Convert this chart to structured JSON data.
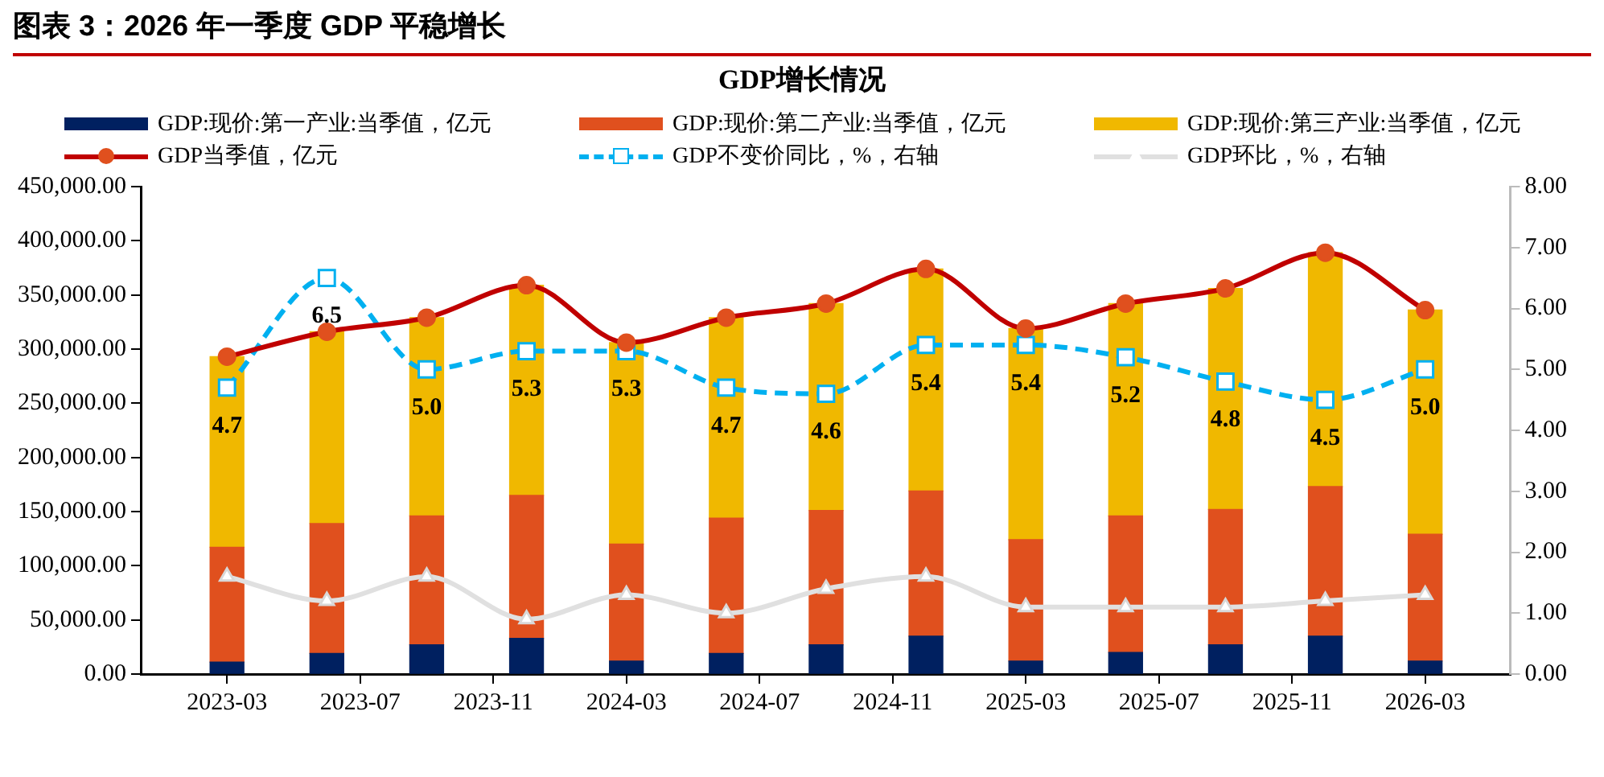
{
  "chart_data": {
    "type": "bar",
    "title": "图表 3：2026 年一季度 GDP 平稳增长",
    "subtitle": "GDP增长情况",
    "x": [
      "2023-03",
      "2023-06",
      "2023-09",
      "2023-12",
      "2024-03",
      "2024-06",
      "2024-09",
      "2024-12",
      "2025-03",
      "2025-06",
      "2025-09",
      "2025-12",
      "2026-03"
    ],
    "stacked": true,
    "legend": "top",
    "grid": false,
    "series": [
      {
        "name": "GDP:现价:第一产业:当季值，亿元",
        "color": "#002060",
        "values": [
          11000,
          19000,
          27000,
          33000,
          12000,
          19000,
          27000,
          35000,
          12000,
          20000,
          27000,
          35000,
          12000
        ]
      },
      {
        "name": "GDP:现价:第二产业:当季值，亿元",
        "color": "#e0501e",
        "values": [
          106000,
          120000,
          119000,
          132000,
          108000,
          125000,
          124000,
          134000,
          112000,
          126000,
          125000,
          138000,
          117000
        ]
      },
      {
        "name": "GDP:现价:第三产业:当季值，亿元",
        "color": "#f0b800",
        "values": [
          176000,
          177000,
          183000,
          194000,
          186000,
          185000,
          191000,
          205000,
          195000,
          196000,
          204000,
          216000,
          207000
        ]
      },
      {
        "name": "GDP当季值，亿元",
        "type": "line",
        "color": "#c00000",
        "marker": "circle",
        "line_style": "solid",
        "values": [
          293000,
          316000,
          329000,
          359000,
          306000,
          329000,
          342000,
          374000,
          319000,
          342000,
          356000,
          389000,
          336000
        ]
      },
      {
        "name": "GDP不变价同比，%，右轴",
        "type": "line",
        "axis": "y2",
        "color": "#00b0f0",
        "marker": "square",
        "line_style": "dashed",
        "values": [
          4.7,
          6.5,
          5.0,
          5.3,
          5.3,
          4.7,
          4.6,
          5.4,
          5.4,
          5.2,
          4.8,
          4.5,
          5.0
        ],
        "value_labels": [
          "4.7",
          "6.5",
          "5.0",
          "5.3",
          "5.3",
          "4.7",
          "4.6",
          "5.4",
          "5.4",
          "5.2",
          "4.8",
          "4.5",
          "5.0"
        ]
      },
      {
        "name": "GDP环比，%，右轴",
        "type": "line",
        "axis": "y2",
        "color": "#e0e0e0",
        "marker": "triangle",
        "line_style": "solid",
        "values": [
          1.6,
          1.2,
          1.6,
          0.9,
          1.3,
          1.0,
          1.4,
          1.6,
          1.1,
          1.1,
          1.1,
          1.2,
          1.3
        ]
      }
    ],
    "xlim": [
      "2023-02-15",
      "2026-03-16"
    ],
    "xticks": [
      "2023-03",
      "2023-07",
      "2023-11",
      "2024-03",
      "2024-07",
      "2024-11",
      "2025-03",
      "2025-07",
      "2025-11",
      "2026-03"
    ],
    "ylim": [
      0,
      450000
    ],
    "yticks": [
      {
        "value": 0,
        "label": "0.00"
      },
      {
        "value": 50000,
        "label": "50,000.00"
      },
      {
        "value": 100000,
        "label": "100,000.00"
      },
      {
        "value": 150000,
        "label": "150,000.00"
      },
      {
        "value": 200000,
        "label": "200,000.00"
      },
      {
        "value": 250000,
        "label": "250,000.00"
      },
      {
        "value": 300000,
        "label": "300,000.00"
      },
      {
        "value": 350000,
        "label": "350,000.00"
      },
      {
        "value": 400000,
        "label": "400,000.00"
      },
      {
        "value": 450000,
        "label": "450,000.00"
      }
    ],
    "y2lim": [
      0,
      8
    ],
    "y2ticks": [
      {
        "value": 0,
        "label": "0.00"
      },
      {
        "value": 1,
        "label": "1.00"
      },
      {
        "value": 2,
        "label": "2.00"
      },
      {
        "value": 3,
        "label": "3.00"
      },
      {
        "value": 4,
        "label": "4.00"
      },
      {
        "value": 5,
        "label": "5.00"
      },
      {
        "value": 6,
        "label": "6.00"
      },
      {
        "value": 7,
        "label": "7.00"
      },
      {
        "value": 8,
        "label": "8.00"
      }
    ]
  }
}
